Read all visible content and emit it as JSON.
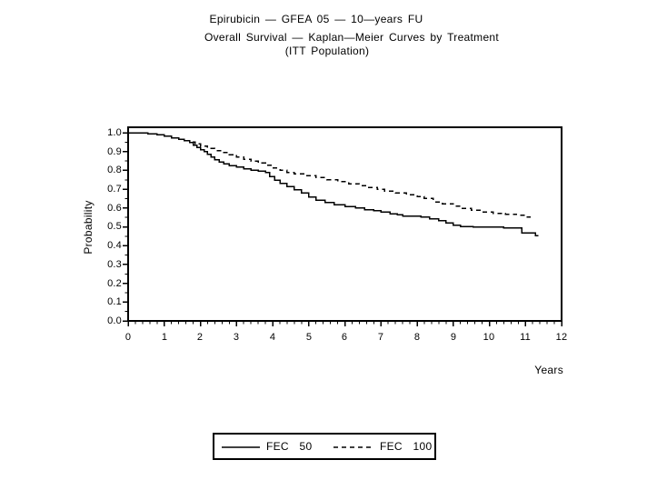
{
  "header": {
    "title_line1": "Epirubicin — GFEA 05 — 10—years FU",
    "title_line2": "Overall Survival — Kaplan—Meier Curves by Treatment",
    "title_line3": "(ITT Population)"
  },
  "chart_data": {
    "type": "line",
    "subtype": "kaplan-meier-step",
    "title": "Epirubicin — GFEA 05 — 10—years FU | Overall Survival — Kaplan—Meier Curves by Treatment | (ITT Population)",
    "title_lines": [
      "Epirubicin — GFEA 05 — 10—years FU",
      "Overall Survival — Kaplan—Meier Curves by Treatment",
      "(ITT Population)"
    ],
    "xlabel": "Years",
    "ylabel": "Probability",
    "xlim": [
      0,
      12
    ],
    "ylim": [
      0.0,
      1.0
    ],
    "grid": false,
    "frame": true,
    "legend_position": "bottom-center",
    "x_ticks": [
      0,
      1,
      2,
      3,
      4,
      5,
      6,
      7,
      8,
      9,
      10,
      11,
      12
    ],
    "x_tick_labels": [
      "0",
      "1",
      "2",
      "3",
      "4",
      "5",
      "6",
      "7",
      "8",
      "9",
      "10",
      "11",
      "12"
    ],
    "x_minor_step": 0.2,
    "y_ticks": [
      1.0,
      0.9,
      0.8,
      0.7,
      0.6,
      0.5,
      0.4,
      0.3,
      0.2,
      0.1,
      0.0
    ],
    "y_tick_labels": [
      "1.0",
      "0.9",
      "0.8",
      "0.7",
      "0.6",
      "0.5",
      "0.4",
      "0.3",
      "0.2",
      "0.1",
      "0.0"
    ],
    "y_minor_step": 0.05,
    "line_color": "#000000",
    "series": [
      {
        "name": "FEC 50",
        "line_style": "solid",
        "color": "#000000",
        "end_time": 11.36,
        "points": [
          [
            0,
            1.0
          ],
          [
            0.55,
            0.995
          ],
          [
            0.8,
            0.99
          ],
          [
            1.0,
            0.981
          ],
          [
            1.2,
            0.973
          ],
          [
            1.4,
            0.965
          ],
          [
            1.55,
            0.957
          ],
          [
            1.7,
            0.948
          ],
          [
            1.8,
            0.934
          ],
          [
            1.9,
            0.922
          ],
          [
            2.0,
            0.91
          ],
          [
            2.1,
            0.899
          ],
          [
            2.2,
            0.886
          ],
          [
            2.3,
            0.872
          ],
          [
            2.4,
            0.857
          ],
          [
            2.52,
            0.845
          ],
          [
            2.65,
            0.834
          ],
          [
            2.8,
            0.826
          ],
          [
            3.0,
            0.817
          ],
          [
            3.2,
            0.809
          ],
          [
            3.4,
            0.802
          ],
          [
            3.6,
            0.796
          ],
          [
            3.8,
            0.789
          ],
          [
            3.92,
            0.766
          ],
          [
            4.05,
            0.749
          ],
          [
            4.2,
            0.731
          ],
          [
            4.4,
            0.714
          ],
          [
            4.6,
            0.697
          ],
          [
            4.8,
            0.679
          ],
          [
            5.0,
            0.659
          ],
          [
            5.2,
            0.641
          ],
          [
            5.45,
            0.629
          ],
          [
            5.7,
            0.617
          ],
          [
            6.0,
            0.608
          ],
          [
            6.3,
            0.6
          ],
          [
            6.55,
            0.592
          ],
          [
            6.8,
            0.585
          ],
          [
            7.0,
            0.578
          ],
          [
            7.25,
            0.57
          ],
          [
            7.45,
            0.564
          ],
          [
            7.6,
            0.558
          ],
          [
            8.1,
            0.551
          ],
          [
            8.35,
            0.543
          ],
          [
            8.6,
            0.534
          ],
          [
            8.8,
            0.521
          ],
          [
            9.0,
            0.509
          ],
          [
            9.2,
            0.502
          ],
          [
            9.55,
            0.499
          ],
          [
            10.4,
            0.495
          ],
          [
            10.9,
            0.467
          ],
          [
            11.28,
            0.452
          ]
        ]
      },
      {
        "name": "FEC 100",
        "line_style": "dashed",
        "color": "#000000",
        "end_time": 11.15,
        "points": [
          [
            0,
            1.0
          ],
          [
            0.55,
            0.995
          ],
          [
            0.8,
            0.99
          ],
          [
            1.0,
            0.981
          ],
          [
            1.2,
            0.973
          ],
          [
            1.4,
            0.965
          ],
          [
            1.55,
            0.957
          ],
          [
            1.7,
            0.951
          ],
          [
            1.85,
            0.94
          ],
          [
            2.0,
            0.928
          ],
          [
            2.2,
            0.916
          ],
          [
            2.4,
            0.905
          ],
          [
            2.6,
            0.895
          ],
          [
            2.8,
            0.884
          ],
          [
            3.0,
            0.871
          ],
          [
            3.2,
            0.859
          ],
          [
            3.4,
            0.849
          ],
          [
            3.6,
            0.839
          ],
          [
            3.8,
            0.827
          ],
          [
            4.0,
            0.812
          ],
          [
            4.2,
            0.8
          ],
          [
            4.4,
            0.79
          ],
          [
            4.6,
            0.782
          ],
          [
            4.9,
            0.772
          ],
          [
            5.2,
            0.762
          ],
          [
            5.5,
            0.751
          ],
          [
            5.8,
            0.741
          ],
          [
            6.1,
            0.729
          ],
          [
            6.4,
            0.719
          ],
          [
            6.6,
            0.709
          ],
          [
            6.9,
            0.699
          ],
          [
            7.1,
            0.691
          ],
          [
            7.4,
            0.681
          ],
          [
            7.7,
            0.671
          ],
          [
            8.0,
            0.661
          ],
          [
            8.2,
            0.651
          ],
          [
            8.45,
            0.632
          ],
          [
            8.7,
            0.622
          ],
          [
            9.0,
            0.611
          ],
          [
            9.25,
            0.598
          ],
          [
            9.5,
            0.589
          ],
          [
            9.8,
            0.579
          ],
          [
            10.1,
            0.572
          ],
          [
            10.45,
            0.567
          ],
          [
            10.75,
            0.562
          ],
          [
            11.05,
            0.552
          ]
        ]
      }
    ]
  }
}
